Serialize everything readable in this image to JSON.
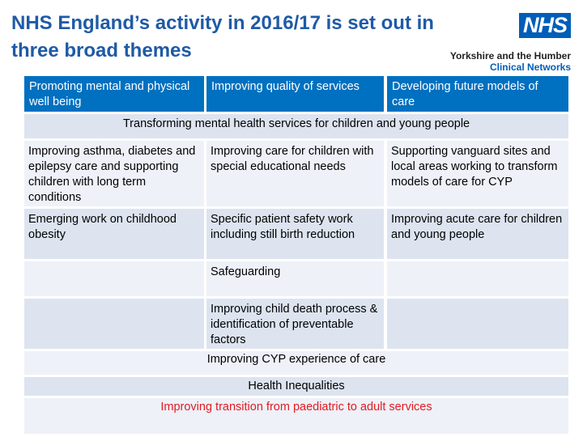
{
  "slide": {
    "title": "NHS England’s activity in 2016/17 is set out in three broad themes",
    "logo_text": "NHS",
    "org_line1": "Yorkshire and the Humber",
    "org_line2": "Clinical Networks"
  },
  "table": {
    "headers": [
      "Promoting mental and physical well being",
      "Improving quality of services",
      "Developing future models of care"
    ],
    "span_row_1": "Transforming mental health services for children and young people",
    "row1": [
      "Improving asthma, diabetes and epilepsy care and supporting children with long term conditions",
      "Improving care for children with special educational needs",
      "Supporting vanguard sites and local areas working to transform models of care for CYP"
    ],
    "row2": [
      "Emerging work on childhood obesity",
      "Specific patient safety work including still birth reduction",
      "Improving acute care for children and young people"
    ],
    "row3_mid": "Safeguarding",
    "row4_mid": "Improving child death process & identification of preventable factors",
    "span_row_2": "Improving CYP experience of care",
    "span_row_3": "Health Inequalities",
    "span_row_4": "Improving transition from paediatric to adult services"
  },
  "colors": {
    "header_blue": "#0070c0",
    "title_blue": "#1f5aa6",
    "nhs_blue": "#005eb8",
    "transition_red": "#e31b23"
  }
}
